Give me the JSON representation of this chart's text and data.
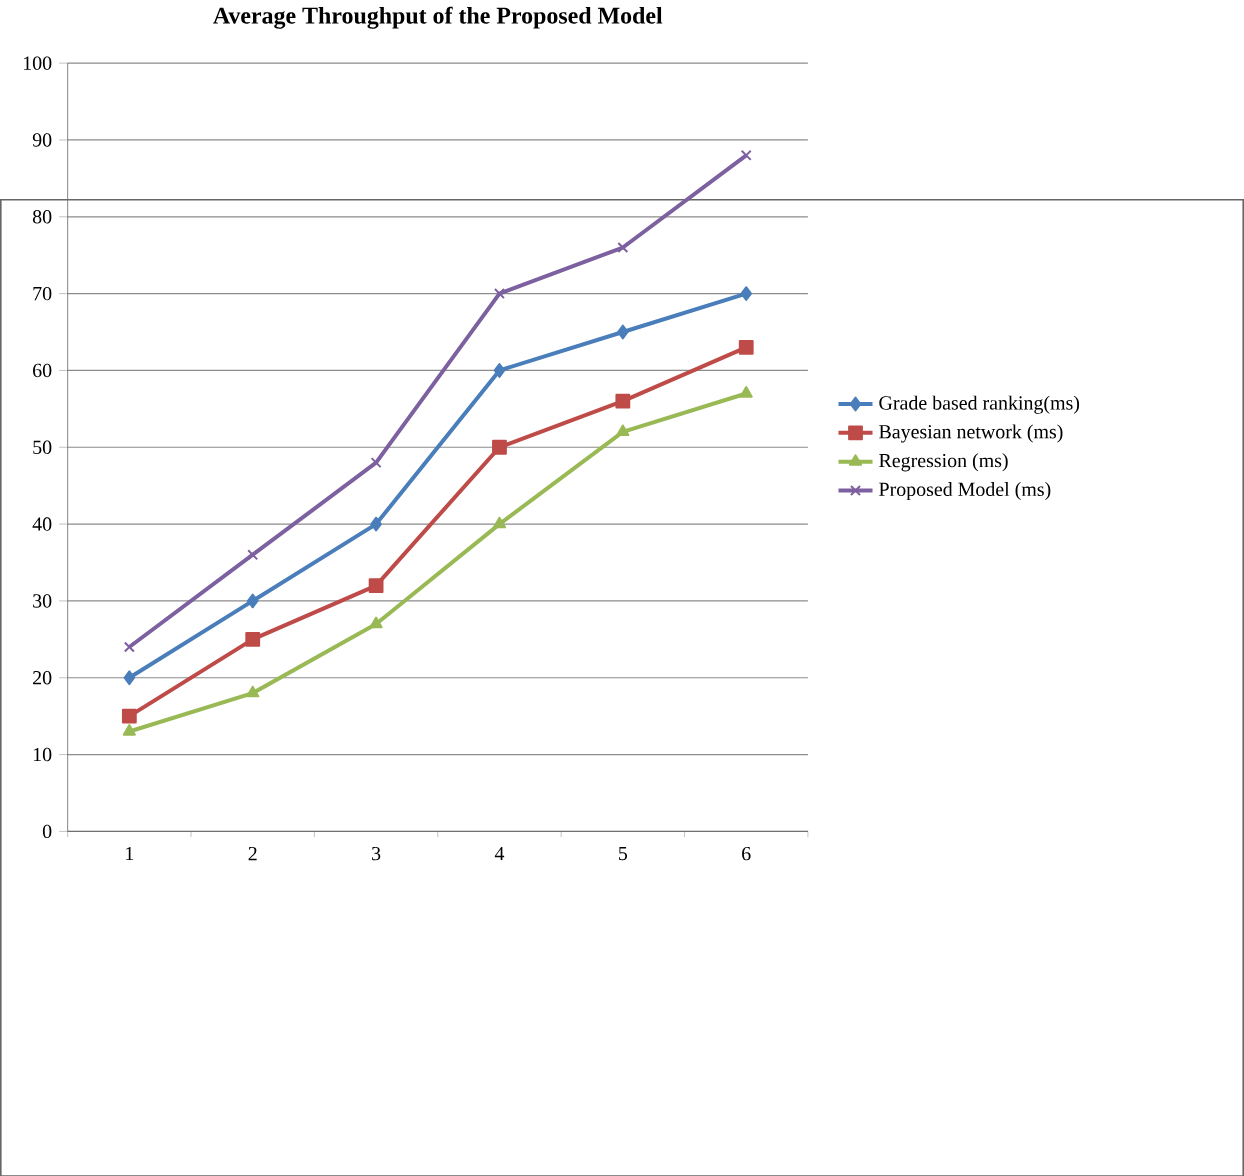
{
  "chart_data": {
    "type": "line",
    "title": "Average Throughput of the Proposed Model",
    "categories": [
      "1",
      "2",
      "3",
      "4",
      "5",
      "6"
    ],
    "series": [
      {
        "name": "Grade based ranking(ms)",
        "color": "#4a7ebb",
        "marker": "diamond",
        "values": [
          20,
          30,
          40,
          60,
          65,
          70
        ]
      },
      {
        "name": "Bayesian network (ms)",
        "color": "#be4b48",
        "marker": "square",
        "values": [
          15,
          25,
          32,
          50,
          56,
          63
        ]
      },
      {
        "name": "Regression (ms)",
        "color": "#98b954",
        "marker": "triangle",
        "values": [
          13,
          18,
          27,
          40,
          52,
          57
        ]
      },
      {
        "name": "Proposed Model (ms)",
        "color": "#7d60a0",
        "marker": "cross",
        "values": [
          24,
          36,
          48,
          70,
          76,
          88
        ]
      }
    ],
    "ylim": [
      0,
      100
    ],
    "yticks": [
      0,
      10,
      20,
      30,
      40,
      50,
      60,
      70,
      80,
      90,
      100
    ],
    "grid": "y",
    "legend": "right",
    "line_style": "solid"
  }
}
